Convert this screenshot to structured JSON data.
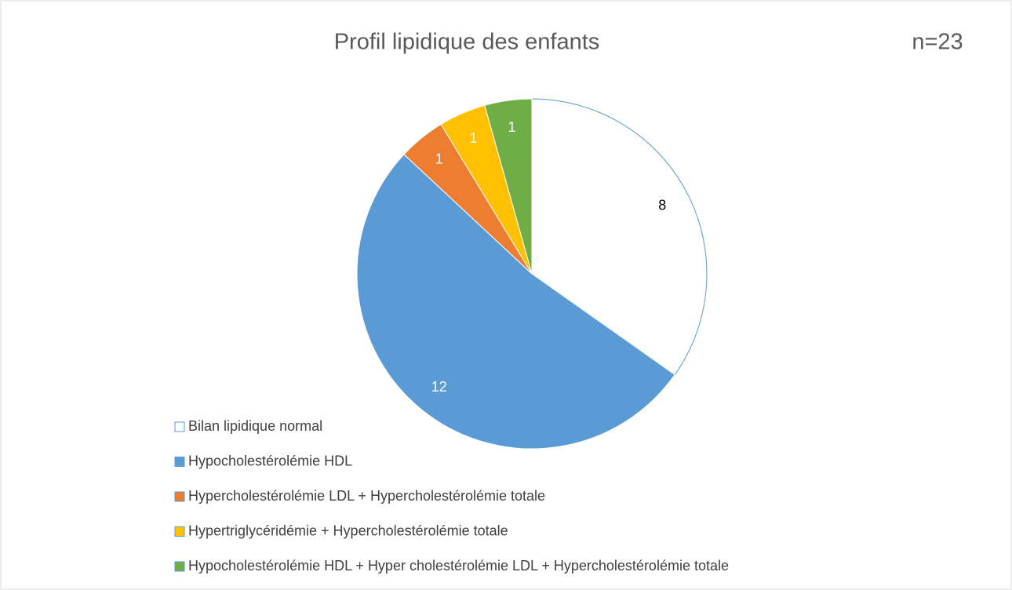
{
  "chart_data": {
    "type": "pie",
    "title": "Profil lipidique des enfants",
    "annotation": "n=23",
    "categories": [
      "Bilan lipidique normal",
      "Hypocholestérolémie HDL",
      "Hypercholestérolémie LDL + Hypercholestérolémie totale",
      "Hypertriglycéridémie + Hypercholestérolémie totale",
      "Hypocholestérolémie HDL + Hyper cholestérolémie LDL + Hypercholestérolémie totale"
    ],
    "values": [
      8,
      12,
      1,
      1,
      1
    ],
    "colors": [
      "#ffffff",
      "#5b9bd5",
      "#ed7d31",
      "#ffc000",
      "#70ad47"
    ],
    "label_colors": [
      "#000000",
      "#ffffff",
      "#ffffff",
      "#ffffff",
      "#ffffff"
    ],
    "edge_color": "#5b9bd5",
    "legend": "bottom-left"
  }
}
